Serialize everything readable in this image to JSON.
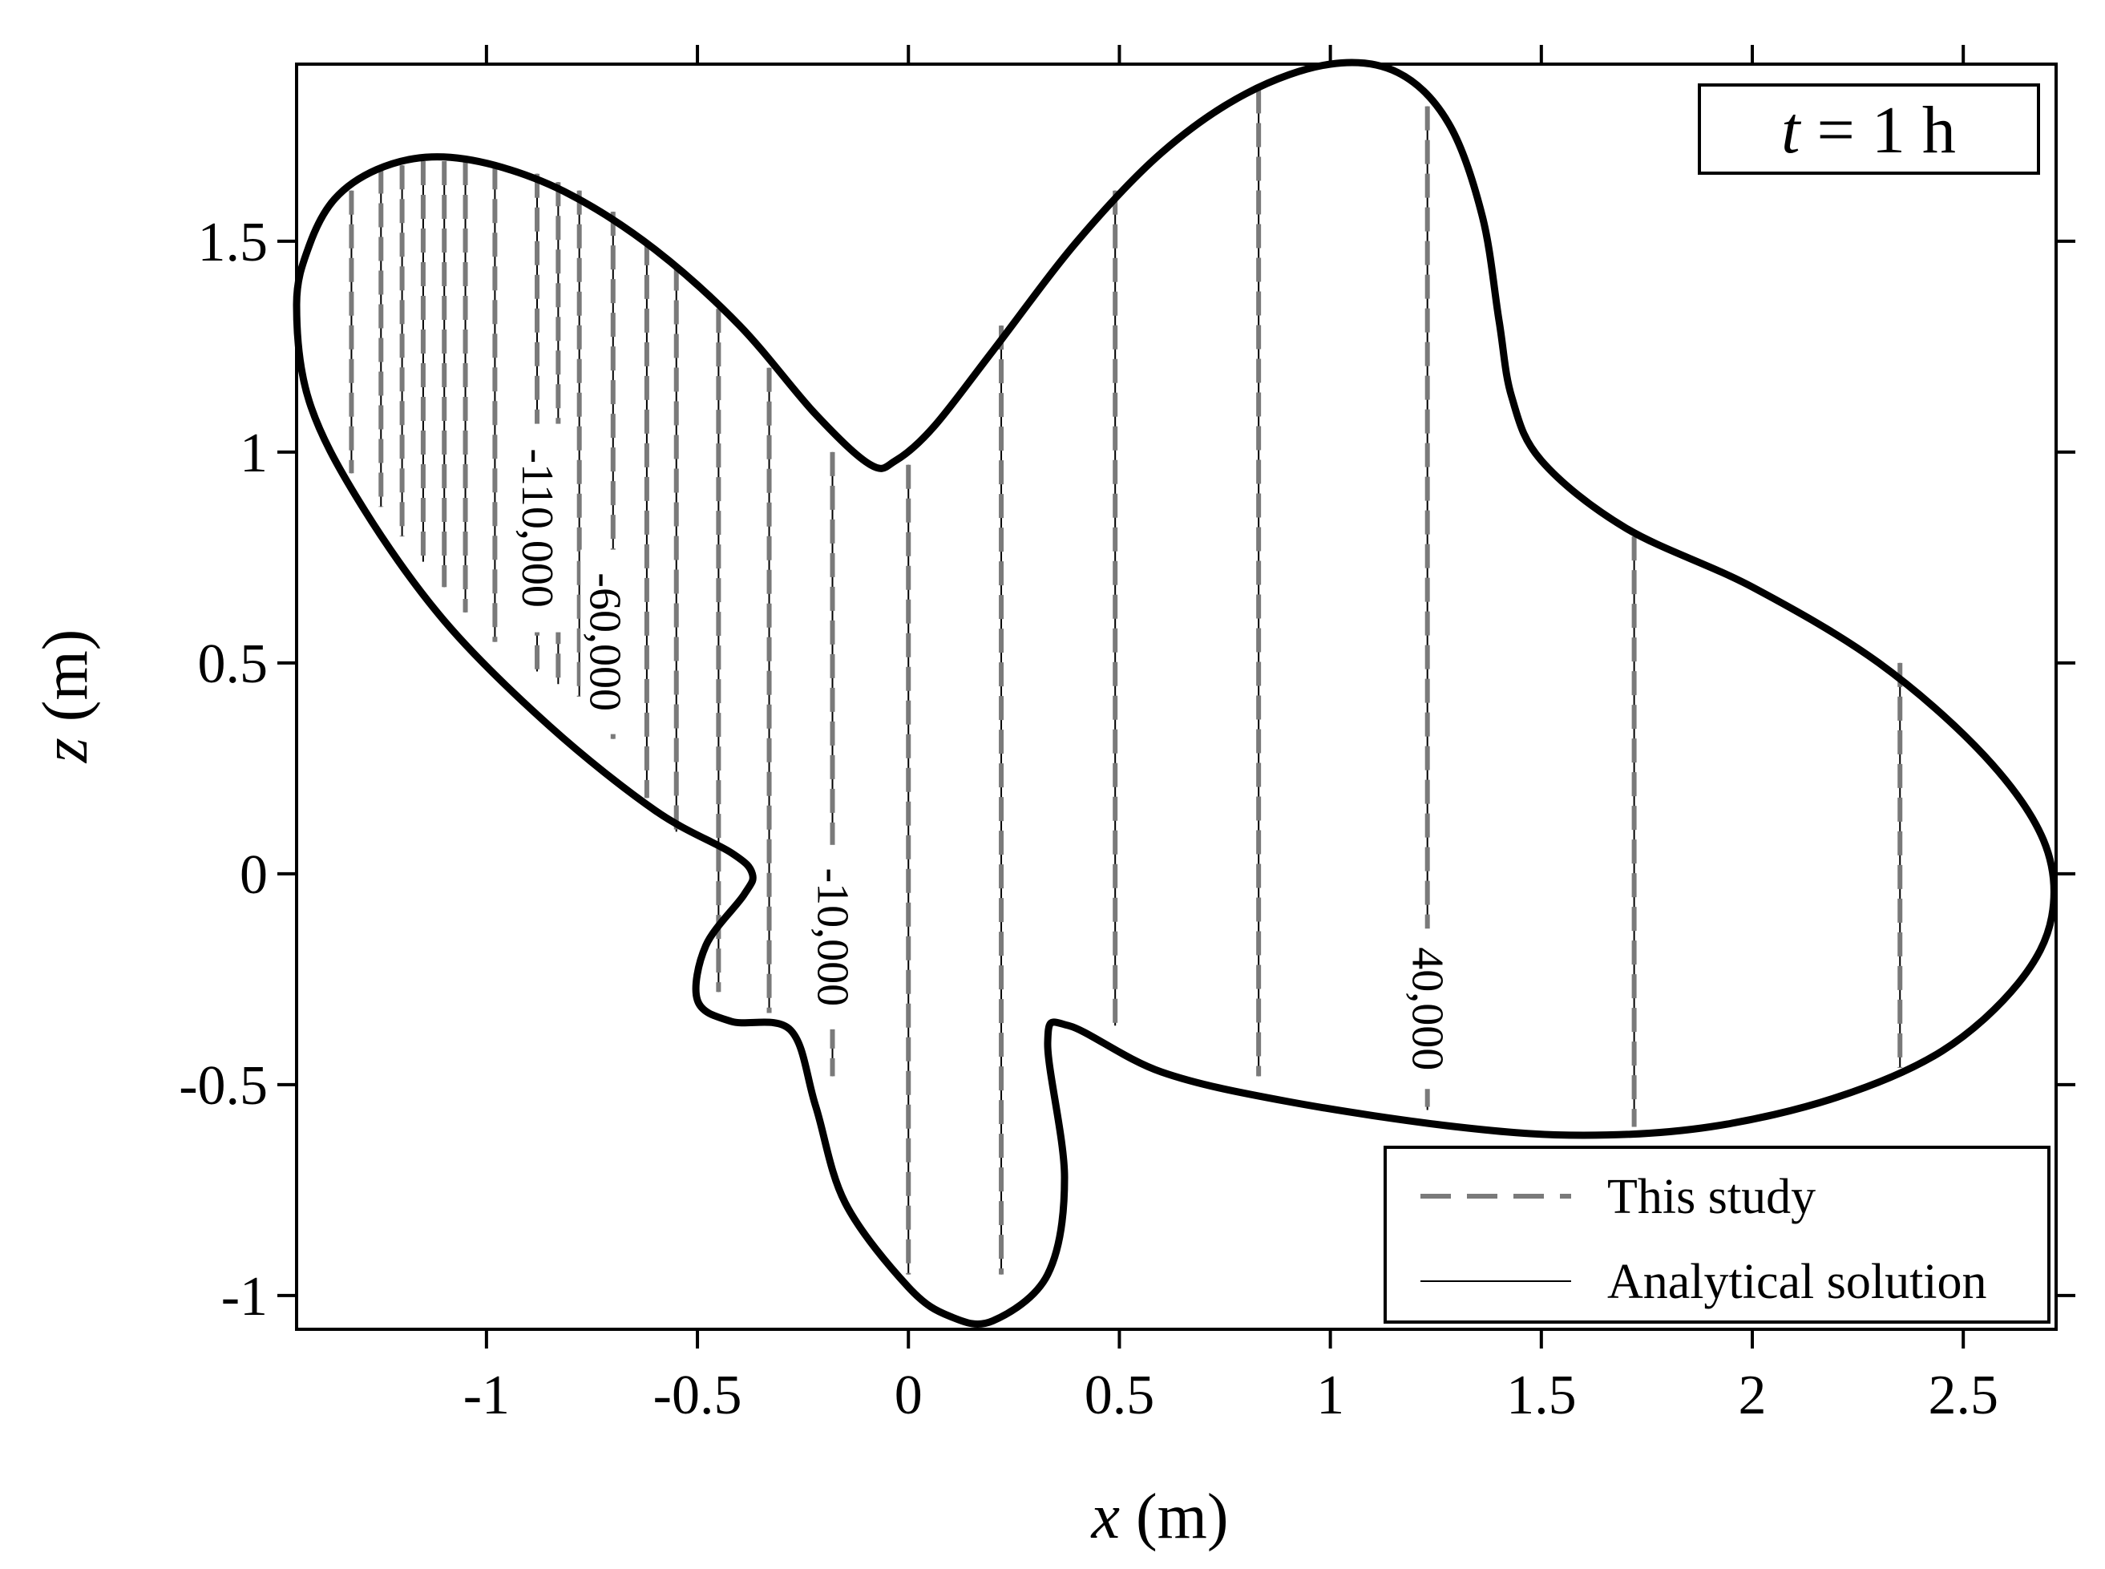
{
  "chart_data": {
    "type": "contour",
    "annotation": {
      "var": "t",
      "rest": " = 1 h"
    },
    "xlabel": {
      "var": "x",
      "unit": " (m)"
    },
    "ylabel": {
      "var": "z",
      "unit": " (m)"
    },
    "xlim": [
      -1.45,
      2.72
    ],
    "ylim": [
      -1.08,
      1.92
    ],
    "xticks": [
      {
        "value": -1,
        "label": "-1"
      },
      {
        "value": -0.5,
        "label": "-0.5"
      },
      {
        "value": 0,
        "label": "0"
      },
      {
        "value": 0.5,
        "label": "0.5"
      },
      {
        "value": 1,
        "label": "1"
      },
      {
        "value": 1.5,
        "label": "1.5"
      },
      {
        "value": 2,
        "label": "2"
      },
      {
        "value": 2.5,
        "label": "2.5"
      }
    ],
    "yticks": [
      {
        "value": -1,
        "label": "-1"
      },
      {
        "value": -0.5,
        "label": "-0.5"
      },
      {
        "value": 0,
        "label": "0"
      },
      {
        "value": 0.5,
        "label": "0.5"
      },
      {
        "value": 1,
        "label": "1"
      },
      {
        "value": 1.5,
        "label": "1.5"
      }
    ],
    "boundary": [
      [
        -1.45,
        1.35
      ],
      [
        -1.42,
        1.49
      ],
      [
        -1.36,
        1.6
      ],
      [
        -1.26,
        1.67
      ],
      [
        -1.13,
        1.7
      ],
      [
        -0.98,
        1.68
      ],
      [
        -0.8,
        1.61
      ],
      [
        -0.6,
        1.48
      ],
      [
        -0.4,
        1.3
      ],
      [
        -0.22,
        1.09
      ],
      [
        -0.09,
        0.97
      ],
      [
        -0.03,
        0.98
      ],
      [
        0.06,
        1.06
      ],
      [
        0.2,
        1.24
      ],
      [
        0.4,
        1.5
      ],
      [
        0.6,
        1.71
      ],
      [
        0.8,
        1.85
      ],
      [
        1.0,
        1.92
      ],
      [
        1.16,
        1.9
      ],
      [
        1.28,
        1.78
      ],
      [
        1.36,
        1.56
      ],
      [
        1.4,
        1.31
      ],
      [
        1.43,
        1.13
      ],
      [
        1.5,
        0.98
      ],
      [
        1.7,
        0.82
      ],
      [
        2.0,
        0.68
      ],
      [
        2.3,
        0.5
      ],
      [
        2.55,
        0.28
      ],
      [
        2.69,
        0.08
      ],
      [
        2.71,
        -0.1
      ],
      [
        2.63,
        -0.26
      ],
      [
        2.45,
        -0.42
      ],
      [
        2.2,
        -0.53
      ],
      [
        1.9,
        -0.6
      ],
      [
        1.6,
        -0.62
      ],
      [
        1.3,
        -0.6
      ],
      [
        0.9,
        -0.54
      ],
      [
        0.6,
        -0.47
      ],
      [
        0.38,
        -0.36
      ],
      [
        0.33,
        -0.4
      ],
      [
        0.37,
        -0.72
      ],
      [
        0.33,
        -0.95
      ],
      [
        0.2,
        -1.06
      ],
      [
        0.1,
        -1.05
      ],
      [
        0.0,
        -0.98
      ],
      [
        -0.15,
        -0.78
      ],
      [
        -0.22,
        -0.55
      ],
      [
        -0.28,
        -0.37
      ],
      [
        -0.42,
        -0.35
      ],
      [
        -0.5,
        -0.3
      ],
      [
        -0.48,
        -0.17
      ],
      [
        -0.39,
        -0.05
      ],
      [
        -0.37,
        0.0
      ],
      [
        -0.42,
        0.05
      ],
      [
        -0.6,
        0.15
      ],
      [
        -0.85,
        0.35
      ],
      [
        -1.1,
        0.6
      ],
      [
        -1.3,
        0.88
      ],
      [
        -1.42,
        1.12
      ]
    ],
    "contours": [
      {
        "x": -1.32,
        "z": [
          0.95,
          1.62
        ]
      },
      {
        "x": -1.25,
        "z": [
          0.87,
          1.67
        ]
      },
      {
        "x": -1.2,
        "z": [
          0.8,
          1.68
        ]
      },
      {
        "x": -1.15,
        "z": [
          0.74,
          1.69
        ]
      },
      {
        "x": -1.1,
        "z": [
          0.68,
          1.69
        ]
      },
      {
        "x": -1.05,
        "z": [
          0.62,
          1.69
        ]
      },
      {
        "x": -0.98,
        "z": [
          0.55,
          1.68
        ]
      },
      {
        "x": -0.88,
        "z": [
          0.48,
          1.66
        ]
      },
      {
        "x": -0.83,
        "z": [
          0.45,
          1.64
        ]
      },
      {
        "x": -0.78,
        "z": [
          0.42,
          1.62
        ]
      },
      {
        "x": -0.7,
        "z": [
          0.32,
          1.57
        ]
      },
      {
        "x": -0.62,
        "z": [
          0.18,
          1.5
        ]
      },
      {
        "x": -0.55,
        "z": [
          0.1,
          1.44
        ]
      },
      {
        "x": -0.45,
        "z": [
          -0.28,
          1.34
        ]
      },
      {
        "x": -0.33,
        "z": [
          -0.33,
          1.2
        ]
      },
      {
        "x": -0.18,
        "z": [
          -0.48,
          1.0
        ]
      },
      {
        "x": 0.0,
        "z": [
          -0.95,
          0.97
        ]
      },
      {
        "x": 0.22,
        "z": [
          -0.95,
          1.3
        ]
      },
      {
        "x": 0.49,
        "z": [
          -0.36,
          1.62
        ]
      },
      {
        "x": 0.83,
        "z": [
          -0.48,
          1.86
        ]
      },
      {
        "x": 1.23,
        "z": [
          -0.56,
          1.82
        ]
      },
      {
        "x": 1.72,
        "z": [
          -0.6,
          0.8
        ]
      },
      {
        "x": 2.35,
        "z": [
          -0.46,
          0.5
        ]
      }
    ],
    "contour_labels": [
      {
        "text": "-110,000",
        "x": -0.88,
        "z": 0.82
      },
      {
        "text": "-60,000",
        "x": -0.72,
        "z": 0.55
      },
      {
        "text": "-10,000",
        "x": -0.18,
        "z": -0.15
      },
      {
        "text": "40,000",
        "x": 1.23,
        "z": -0.32
      }
    ],
    "legend": {
      "position": "bottom-right",
      "entries": [
        {
          "label": "This study",
          "style": "dashed",
          "color": "#7a7a7a"
        },
        {
          "label": "Analytical solution",
          "style": "solid",
          "color": "#000000"
        }
      ]
    }
  }
}
